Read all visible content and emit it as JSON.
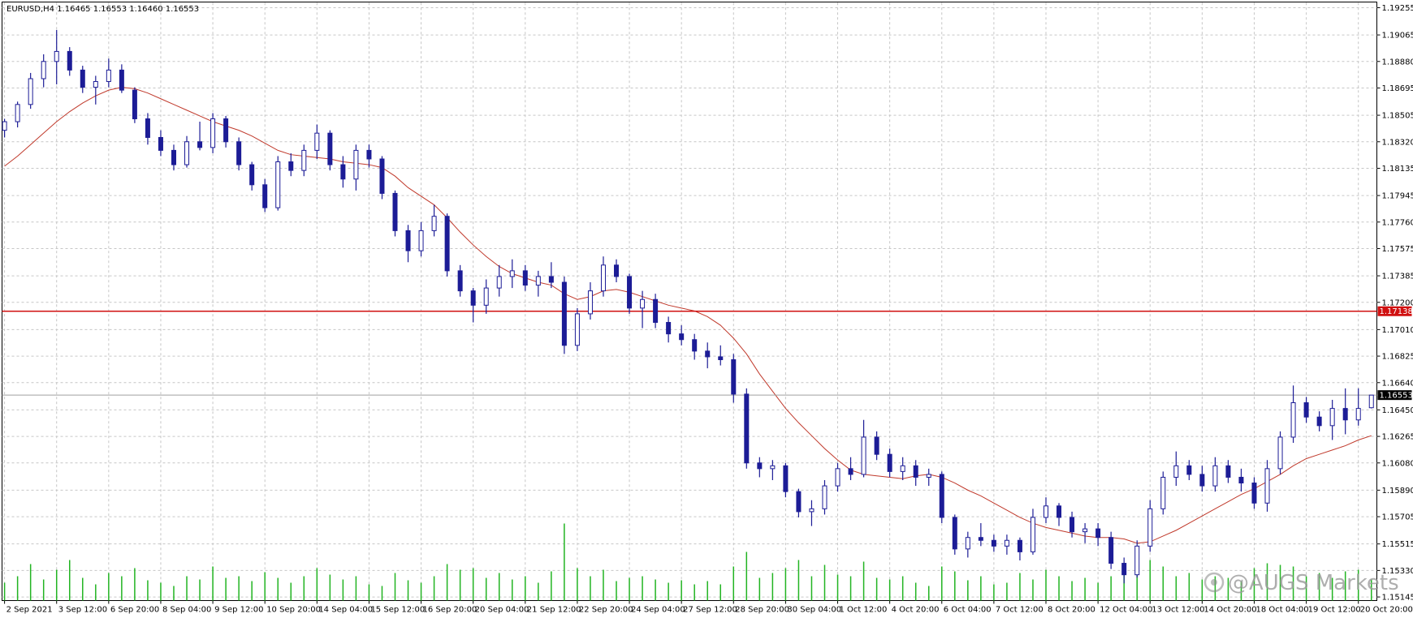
{
  "chart_data": {
    "type": "candlestick",
    "title": "EURUSD,H4  1.16465 1.16553 1.16460 1.16553",
    "watermark": "@AUGS Markets",
    "color": "#1c1c96",
    "categories": [
      "2 Sep 2021",
      null,
      null,
      null,
      "3 Sep 12:00",
      null,
      null,
      null,
      "6 Sep 20:00",
      null,
      null,
      null,
      "8 Sep 04:00",
      null,
      null,
      null,
      "9 Sep 12:00",
      null,
      null,
      null,
      "10 Sep 20:00",
      null,
      null,
      null,
      "14 Sep 04:00",
      null,
      null,
      null,
      "15 Sep 12:00",
      null,
      null,
      null,
      "16 Sep 20:00",
      null,
      null,
      null,
      "20 Sep 04:00",
      null,
      null,
      null,
      "21 Sep 12:00",
      null,
      null,
      null,
      "22 Sep 20:00",
      null,
      null,
      null,
      "24 Sep 04:00",
      null,
      null,
      null,
      "27 Sep 12:00",
      null,
      null,
      null,
      "28 Sep 20:00",
      null,
      null,
      null,
      "30 Sep 04:00",
      null,
      null,
      null,
      "1 Oct 12:00",
      null,
      null,
      null,
      "4 Oct 20:00",
      null,
      null,
      null,
      "6 Oct 04:00",
      null,
      null,
      null,
      "7 Oct 12:00",
      null,
      null,
      null,
      "8 Oct 20:00",
      null,
      null,
      null,
      "12 Oct 04:00",
      null,
      null,
      null,
      "13 Oct 12:00",
      null,
      null,
      null,
      "14 Oct 20:00",
      null,
      null,
      null,
      "18 Oct 04:00",
      null,
      null,
      null,
      "19 Oct 12:00",
      null,
      null,
      null,
      "20 Oct 20:00",
      null
    ],
    "open": [
      1.184,
      1.1846,
      1.1858,
      1.1876,
      1.1888,
      1.1895,
      1.1882,
      1.187,
      1.1874,
      1.1882,
      1.1868,
      1.1848,
      1.1835,
      1.1826,
      1.1816,
      1.1832,
      1.1828,
      1.1848,
      1.1832,
      1.1816,
      1.1802,
      1.1786,
      1.1818,
      1.1812,
      1.1826,
      1.1838,
      1.1816,
      1.1806,
      1.1826,
      1.182,
      1.1796,
      1.177,
      1.1756,
      1.177,
      1.178,
      1.1742,
      1.1728,
      1.1718,
      1.173,
      1.1738,
      1.1742,
      1.1732,
      1.1738,
      1.1734,
      1.169,
      1.1712,
      1.1728,
      1.1746,
      1.1738,
      1.1716,
      1.1722,
      1.1706,
      1.1698,
      1.1694,
      1.1686,
      1.1682,
      1.168,
      1.1656,
      1.1608,
      1.1604,
      1.1606,
      1.1588,
      1.1574,
      1.1576,
      1.1592,
      1.1604,
      1.16,
      1.1626,
      1.1614,
      1.1602,
      1.1606,
      1.1598,
      1.16,
      1.157,
      1.1548,
      1.1556,
      1.1554,
      1.155,
      1.1554,
      1.1546,
      1.157,
      1.1578,
      1.157,
      1.156,
      1.1562,
      1.1556,
      1.1538,
      1.153,
      1.155,
      1.1576,
      1.1598,
      1.1606,
      1.16,
      1.1592,
      1.1606,
      1.1598,
      1.1594,
      1.158,
      1.1604,
      1.1626,
      1.165,
      1.164,
      1.1634,
      1.1646,
      1.1638,
      1.16465
    ],
    "high": [
      1.1848,
      1.186,
      1.188,
      1.1893,
      1.191,
      1.1898,
      1.1885,
      1.1878,
      1.189,
      1.1886,
      1.187,
      1.1852,
      1.184,
      1.183,
      1.1836,
      1.1846,
      1.1852,
      1.185,
      1.1835,
      1.1818,
      1.1806,
      1.1822,
      1.1824,
      1.183,
      1.1844,
      1.184,
      1.1822,
      1.183,
      1.183,
      1.1822,
      1.1798,
      1.1774,
      1.1776,
      1.1788,
      1.1782,
      1.1746,
      1.173,
      1.1736,
      1.1746,
      1.175,
      1.1746,
      1.1742,
      1.1748,
      1.1738,
      1.1716,
      1.1734,
      1.1752,
      1.175,
      1.174,
      1.1728,
      1.1726,
      1.171,
      1.1704,
      1.1698,
      1.1692,
      1.169,
      1.1684,
      1.166,
      1.1612,
      1.161,
      1.1608,
      1.159,
      1.1582,
      1.1596,
      1.1608,
      1.1612,
      1.1638,
      1.163,
      1.1618,
      1.1612,
      1.161,
      1.1604,
      1.1602,
      1.1572,
      1.156,
      1.1566,
      1.1558,
      1.1558,
      1.1556,
      1.1576,
      1.1584,
      1.158,
      1.1574,
      1.1566,
      1.1566,
      1.156,
      1.1542,
      1.1554,
      1.1582,
      1.1602,
      1.1616,
      1.161,
      1.1606,
      1.1612,
      1.161,
      1.1604,
      1.1598,
      1.161,
      1.163,
      1.1662,
      1.1654,
      1.1644,
      1.1652,
      1.166,
      1.166,
      1.16553
    ],
    "low": [
      1.1835,
      1.1842,
      1.1855,
      1.187,
      1.1872,
      1.1878,
      1.1866,
      1.1858,
      1.187,
      1.1866,
      1.1845,
      1.183,
      1.1822,
      1.1812,
      1.1814,
      1.1826,
      1.1824,
      1.1828,
      1.1812,
      1.1798,
      1.1783,
      1.1784,
      1.1808,
      1.1808,
      1.182,
      1.1812,
      1.18,
      1.1798,
      1.1814,
      1.1792,
      1.1766,
      1.1748,
      1.1752,
      1.1766,
      1.1738,
      1.1724,
      1.1706,
      1.1712,
      1.1724,
      1.173,
      1.1728,
      1.1724,
      1.173,
      1.1684,
      1.1686,
      1.1708,
      1.1724,
      1.1734,
      1.1712,
      1.1702,
      1.1702,
      1.1692,
      1.169,
      1.168,
      1.1674,
      1.1676,
      1.165,
      1.1604,
      1.1598,
      1.1596,
      1.1584,
      1.157,
      1.1564,
      1.1572,
      1.1588,
      1.1596,
      1.1598,
      1.161,
      1.1598,
      1.1596,
      1.1592,
      1.1592,
      1.1566,
      1.1544,
      1.1542,
      1.155,
      1.1546,
      1.1544,
      1.154,
      1.1544,
      1.1566,
      1.1564,
      1.1556,
      1.1552,
      1.155,
      1.1534,
      1.1524,
      1.1528,
      1.1546,
      1.1572,
      1.1592,
      1.1596,
      1.1588,
      1.1588,
      1.1594,
      1.1588,
      1.1576,
      1.1574,
      1.16,
      1.1622,
      1.1636,
      1.163,
      1.1624,
      1.1628,
      1.1634,
      1.1646
    ],
    "close": [
      1.1846,
      1.1858,
      1.1876,
      1.1888,
      1.1895,
      1.1882,
      1.187,
      1.1874,
      1.1882,
      1.1868,
      1.1848,
      1.1835,
      1.1826,
      1.1816,
      1.1832,
      1.1828,
      1.1848,
      1.1832,
      1.1816,
      1.1802,
      1.1786,
      1.1818,
      1.1812,
      1.1826,
      1.1838,
      1.1816,
      1.1806,
      1.1826,
      1.182,
      1.1796,
      1.177,
      1.1756,
      1.177,
      1.178,
      1.1742,
      1.1728,
      1.1718,
      1.173,
      1.1738,
      1.1742,
      1.1732,
      1.1738,
      1.1734,
      1.169,
      1.1712,
      1.1728,
      1.1746,
      1.1738,
      1.1716,
      1.1722,
      1.1706,
      1.1698,
      1.1694,
      1.1686,
      1.1682,
      1.168,
      1.1656,
      1.1608,
      1.1604,
      1.1606,
      1.1588,
      1.1574,
      1.1576,
      1.1592,
      1.1604,
      1.16,
      1.1626,
      1.1614,
      1.1602,
      1.1606,
      1.1598,
      1.16,
      1.157,
      1.1548,
      1.1556,
      1.1554,
      1.155,
      1.1554,
      1.1546,
      1.157,
      1.1578,
      1.157,
      1.156,
      1.1562,
      1.1556,
      1.1538,
      1.153,
      1.155,
      1.1576,
      1.1598,
      1.1606,
      1.16,
      1.1592,
      1.1606,
      1.1598,
      1.1594,
      1.158,
      1.1604,
      1.1626,
      1.165,
      1.164,
      1.1634,
      1.1646,
      1.1638,
      1.1646,
      1.16553
    ],
    "ma": {
      "color": "#c0392b",
      "values": [
        1.1815,
        1.1822,
        1.183,
        1.1838,
        1.1846,
        1.1853,
        1.1859,
        1.1864,
        1.1868,
        1.187,
        1.1869,
        1.1866,
        1.1862,
        1.1858,
        1.1854,
        1.185,
        1.1846,
        1.1843,
        1.184,
        1.1836,
        1.1831,
        1.1826,
        1.1823,
        1.1822,
        1.1821,
        1.182,
        1.1818,
        1.1817,
        1.1816,
        1.1814,
        1.1808,
        1.18,
        1.1794,
        1.1788,
        1.1779,
        1.1769,
        1.176,
        1.1752,
        1.1745,
        1.174,
        1.1737,
        1.1734,
        1.1732,
        1.1726,
        1.1722,
        1.1724,
        1.1728,
        1.1729,
        1.1727,
        1.1724,
        1.1721,
        1.1718,
        1.1716,
        1.1714,
        1.171,
        1.1704,
        1.1695,
        1.1684,
        1.167,
        1.1658,
        1.1646,
        1.1636,
        1.1627,
        1.1618,
        1.161,
        1.1603,
        1.16,
        1.1599,
        1.1598,
        1.1597,
        1.1599,
        1.16,
        1.1598,
        1.1594,
        1.1589,
        1.1585,
        1.158,
        1.1575,
        1.157,
        1.1566,
        1.1563,
        1.1561,
        1.1559,
        1.1557,
        1.1556,
        1.1556,
        1.1555,
        1.1552,
        1.1553,
        1.1557,
        1.1561,
        1.1566,
        1.1571,
        1.1576,
        1.1581,
        1.1586,
        1.159,
        1.1595,
        1.16,
        1.1606,
        1.1611,
        1.1614,
        1.1617,
        1.162,
        1.1624,
        1.1627
      ]
    },
    "volume": {
      "color": "#22b422",
      "values": [
        22,
        30,
        45,
        26,
        38,
        50,
        28,
        20,
        34,
        30,
        40,
        25,
        22,
        18,
        30,
        26,
        42,
        28,
        30,
        24,
        35,
        28,
        22,
        30,
        40,
        32,
        26,
        30,
        20,
        18,
        34,
        25,
        22,
        30,
        45,
        38,
        40,
        28,
        34,
        26,
        30,
        22,
        36,
        95,
        40,
        30,
        38,
        24,
        28,
        30,
        26,
        22,
        25,
        20,
        24,
        20,
        42,
        60,
        28,
        34,
        40,
        50,
        30,
        44,
        32,
        30,
        48,
        28,
        26,
        30,
        22,
        18,
        42,
        36,
        25,
        30,
        20,
        22,
        34,
        26,
        38,
        30,
        24,
        28,
        22,
        30,
        40,
        48,
        50,
        42,
        30,
        34,
        26,
        30,
        28,
        24,
        40,
        46,
        44,
        42,
        30,
        34,
        28,
        36,
        38,
        26
      ]
    },
    "hline": {
      "value": 1.17138,
      "color": "#d01010"
    },
    "bid": {
      "value": 1.16553,
      "color": "#a0a0a0"
    },
    "ylim": [
      1.1512,
      1.1929
    ],
    "yticks": [
      1.19255,
      1.19065,
      {
        "value": 1.1888,
        "label": "1.18880"
      },
      1.18695,
      1.18505,
      {
        "value": 1.1832,
        "label": "1.18320"
      },
      1.18135,
      1.17945,
      {
        "value": 1.1776,
        "label": "1.17760"
      },
      1.17575,
      1.17385,
      {
        "value": 1.172,
        "label": "1.17200"
      },
      {
        "value": 1.1701,
        "label": "1.17010"
      },
      1.16825,
      {
        "value": 1.1664,
        "label": "1.16640"
      },
      {
        "value": 1.1645,
        "label": "1.16450"
      },
      1.16265,
      {
        "value": 1.1608,
        "label": "1.16080"
      },
      {
        "value": 1.1589,
        "label": "1.15890"
      },
      1.15705,
      1.15515,
      {
        "value": 1.1533,
        "label": "1.15330"
      },
      1.15145
    ],
    "grid": true
  }
}
